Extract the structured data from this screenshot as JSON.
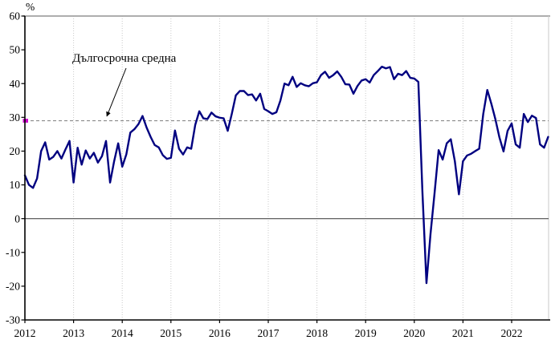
{
  "chart": {
    "unit_label": "%",
    "annotation_text": "Дългосрочна средна",
    "colors": {
      "series_line": "#000080",
      "average_dash": "#8a8a8a",
      "average_marker": "#cc00cc",
      "gridline": "#c9c9c9",
      "top_border": "#a3a3a3",
      "zero_line": "#4d4d4d",
      "axis": "#000000"
    }
  },
  "chart_data": {
    "type": "line",
    "title": "",
    "ylabel": "%",
    "xlabel": "",
    "ylim": [
      -30,
      60
    ],
    "ytick_step": 10,
    "ytick_labels": [
      "60",
      "50",
      "40",
      "30",
      "20",
      "10",
      "0",
      "-10",
      "-20",
      "-30"
    ],
    "x_tick_labels": [
      "2012",
      "2013",
      "2014",
      "2015",
      "2016",
      "2017",
      "2018",
      "2019",
      "2020",
      "2021",
      "2022"
    ],
    "frequency": "monthly",
    "x_range": "2012-01 to 2022-10",
    "long_term_average": 29,
    "annotation": "Дългосрочна средна",
    "grid": "vertical dotted gridline per year",
    "legend": "none",
    "values": [
      12.8,
      10.0,
      9.1,
      11.9,
      20.0,
      22.6,
      17.5,
      18.3,
      20.0,
      17.8,
      20.5,
      23.0,
      10.7,
      21.0,
      16.0,
      20.2,
      17.8,
      19.5,
      16.6,
      18.5,
      23.0,
      10.7,
      17.0,
      22.3,
      15.4,
      19.0,
      25.5,
      26.5,
      28.0,
      30.4,
      27.0,
      24.2,
      21.8,
      21.1,
      18.8,
      17.7,
      18.0,
      26.1,
      20.7,
      19.0,
      21.1,
      20.7,
      27.8,
      31.8,
      29.7,
      29.5,
      31.4,
      30.3,
      29.9,
      29.7,
      26.0,
      31.0,
      36.5,
      37.8,
      37.8,
      36.6,
      36.8,
      35.0,
      37.0,
      32.5,
      31.8,
      31.0,
      31.5,
      35.0,
      40.0,
      39.5,
      42.0,
      39.0,
      40.1,
      39.5,
      39.2,
      40.1,
      40.4,
      42.5,
      43.5,
      41.7,
      42.5,
      43.6,
      42.0,
      39.8,
      39.7,
      37.0,
      39.3,
      40.9,
      41.3,
      40.3,
      42.5,
      43.7,
      45.0,
      44.5,
      44.9,
      41.3,
      42.9,
      42.5,
      43.7,
      41.7,
      41.5,
      40.5,
      8.0,
      -19.1,
      -4.5,
      7.6,
      20.3,
      17.5,
      22.3,
      23.5,
      17.0,
      7.2,
      17.0,
      18.7,
      19.2,
      20.0,
      20.7,
      31.0,
      38.1,
      34.0,
      29.4,
      24.0,
      19.9,
      26.0,
      28.2,
      22.0,
      21.0,
      31.0,
      28.6,
      30.5,
      29.8,
      22.0,
      21.0,
      24.2
    ]
  }
}
